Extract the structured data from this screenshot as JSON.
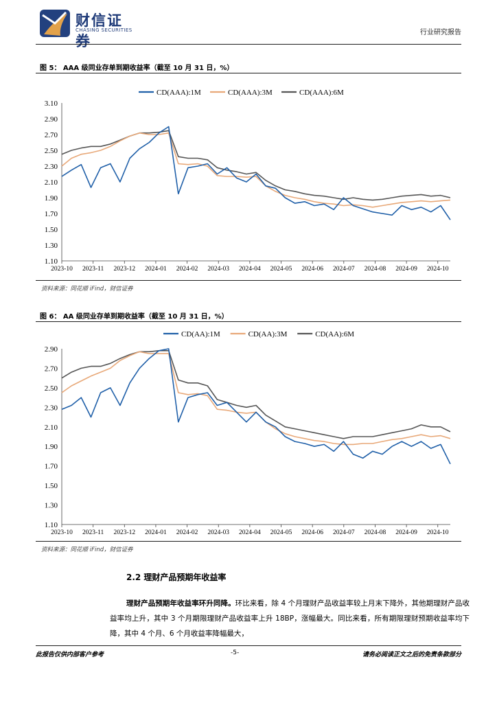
{
  "header": {
    "logo_cn": "财信证券",
    "logo_en": "CHASING SECURITIES",
    "report_type": "行业研究报告"
  },
  "figure5": {
    "title": "图 5： AAA 级同业存单到期收益率（截至 10 月 31 日，%）",
    "source": "资料来源：同花顺 iFind，财信证券"
  },
  "figure6": {
    "title": "图 6： AA 级同业存单到期收益率（截至 10 月 31 日，%）",
    "source": "资料来源：同花顺 iFind，财信证券"
  },
  "chart_data": [
    {
      "type": "line",
      "title": "",
      "xlabel": "",
      "ylabel": "",
      "ylim": [
        1.1,
        3.1
      ],
      "yticks": [
        "3.10",
        "2.90",
        "2.70",
        "2.50",
        "2.30",
        "2.10",
        "1.90",
        "1.70",
        "1.50",
        "1.30",
        "1.10"
      ],
      "xticks": [
        "2023-10",
        "2023-11",
        "2023-12",
        "2024-01",
        "2024-02",
        "2024-03",
        "2024-04",
        "2024-05",
        "2024-06",
        "2024-07",
        "2024-08",
        "2024-09",
        "2024-10"
      ],
      "series": [
        {
          "name": "CD(AAA):1M",
          "color": "#1f5fa8",
          "values": [
            2.17,
            2.25,
            2.32,
            2.03,
            2.28,
            2.33,
            2.1,
            2.4,
            2.52,
            2.6,
            2.72,
            2.8,
            1.95,
            2.28,
            2.3,
            2.33,
            2.2,
            2.28,
            2.15,
            2.1,
            2.2,
            2.05,
            2.02,
            1.9,
            1.83,
            1.85,
            1.8,
            1.82,
            1.75,
            1.9,
            1.8,
            1.76,
            1.72,
            1.7,
            1.68,
            1.8,
            1.75,
            1.78,
            1.72,
            1.8,
            1.62
          ]
        },
        {
          "name": "CD(AAA):3M",
          "color": "#e8a878",
          "values": [
            2.3,
            2.4,
            2.45,
            2.47,
            2.5,
            2.55,
            2.62,
            2.68,
            2.72,
            2.7,
            2.7,
            2.72,
            2.33,
            2.32,
            2.33,
            2.3,
            2.18,
            2.17,
            2.17,
            2.16,
            2.17,
            2.05,
            1.98,
            1.93,
            1.9,
            1.88,
            1.85,
            1.83,
            1.82,
            1.8,
            1.81,
            1.8,
            1.78,
            1.8,
            1.82,
            1.84,
            1.85,
            1.86,
            1.85,
            1.86,
            1.87
          ]
        },
        {
          "name": "CD(AAA):6M",
          "color": "#555555",
          "values": [
            2.45,
            2.5,
            2.53,
            2.55,
            2.55,
            2.58,
            2.63,
            2.68,
            2.72,
            2.72,
            2.73,
            2.75,
            2.42,
            2.4,
            2.4,
            2.38,
            2.28,
            2.25,
            2.23,
            2.2,
            2.22,
            2.12,
            2.05,
            2.0,
            1.98,
            1.95,
            1.93,
            1.92,
            1.9,
            1.88,
            1.9,
            1.88,
            1.87,
            1.88,
            1.9,
            1.92,
            1.93,
            1.94,
            1.92,
            1.93,
            1.9
          ]
        }
      ]
    },
    {
      "type": "line",
      "title": "",
      "xlabel": "",
      "ylabel": "",
      "ylim": [
        1.1,
        2.9
      ],
      "yticks": [
        "2.90",
        "2.70",
        "2.50",
        "2.30",
        "2.10",
        "1.90",
        "1.70",
        "1.50",
        "1.30",
        "1.10"
      ],
      "xticks": [
        "2023-10",
        "2023-11",
        "2023-12",
        "2024-01",
        "2024-02",
        "2024-03",
        "2024-04",
        "2024-05",
        "2024-06",
        "2024-07",
        "2024-08",
        "2024-09",
        "2024-10"
      ],
      "series": [
        {
          "name": "CD(AA):1M",
          "color": "#1f5fa8",
          "values": [
            2.28,
            2.32,
            2.4,
            2.2,
            2.45,
            2.5,
            2.32,
            2.55,
            2.7,
            2.8,
            2.88,
            2.9,
            2.15,
            2.4,
            2.43,
            2.45,
            2.32,
            2.35,
            2.25,
            2.15,
            2.25,
            2.15,
            2.1,
            2.0,
            1.95,
            1.93,
            1.9,
            1.92,
            1.85,
            1.95,
            1.82,
            1.78,
            1.85,
            1.82,
            1.9,
            1.95,
            1.9,
            1.95,
            1.88,
            1.92,
            1.72
          ]
        },
        {
          "name": "CD(AA):3M",
          "color": "#e8a878",
          "values": [
            2.45,
            2.52,
            2.57,
            2.62,
            2.66,
            2.7,
            2.78,
            2.83,
            2.87,
            2.85,
            2.85,
            2.85,
            2.45,
            2.43,
            2.44,
            2.42,
            2.28,
            2.27,
            2.25,
            2.24,
            2.25,
            2.15,
            2.08,
            2.03,
            2.0,
            1.98,
            1.96,
            1.95,
            1.93,
            1.92,
            1.92,
            1.93,
            1.93,
            1.95,
            1.97,
            1.98,
            2.0,
            2.02,
            2.0,
            2.01,
            1.98
          ]
        },
        {
          "name": "CD(AA):6M",
          "color": "#555555",
          "values": [
            2.6,
            2.66,
            2.7,
            2.72,
            2.72,
            2.75,
            2.8,
            2.84,
            2.87,
            2.87,
            2.88,
            2.88,
            2.58,
            2.55,
            2.55,
            2.52,
            2.38,
            2.35,
            2.32,
            2.3,
            2.32,
            2.22,
            2.16,
            2.1,
            2.08,
            2.06,
            2.04,
            2.02,
            2.0,
            1.98,
            2.0,
            2.0,
            2.0,
            2.02,
            2.04,
            2.06,
            2.08,
            2.12,
            2.1,
            2.1,
            2.05
          ]
        }
      ]
    }
  ],
  "section": {
    "title": "2.2 理财产品预期年收益率"
  },
  "body": {
    "para1_bold": "理财产品预期年收益率环升同降。",
    "para1_text": "环比来看，除 4 个月理财产品收益率较上月末下降外，其他期理财产品收益率均上升，其中 3 个月期限理财产品收益率上升 18BP，涨幅最大。同比来看，所有期限理财预期收益率均下降，其中 4 个月、6 个月收益率降幅最大，"
  },
  "footer": {
    "left": "此报告仅供内部客户参考",
    "page": "-5-",
    "right": "请务必阅读正文之后的免责条款部分"
  }
}
